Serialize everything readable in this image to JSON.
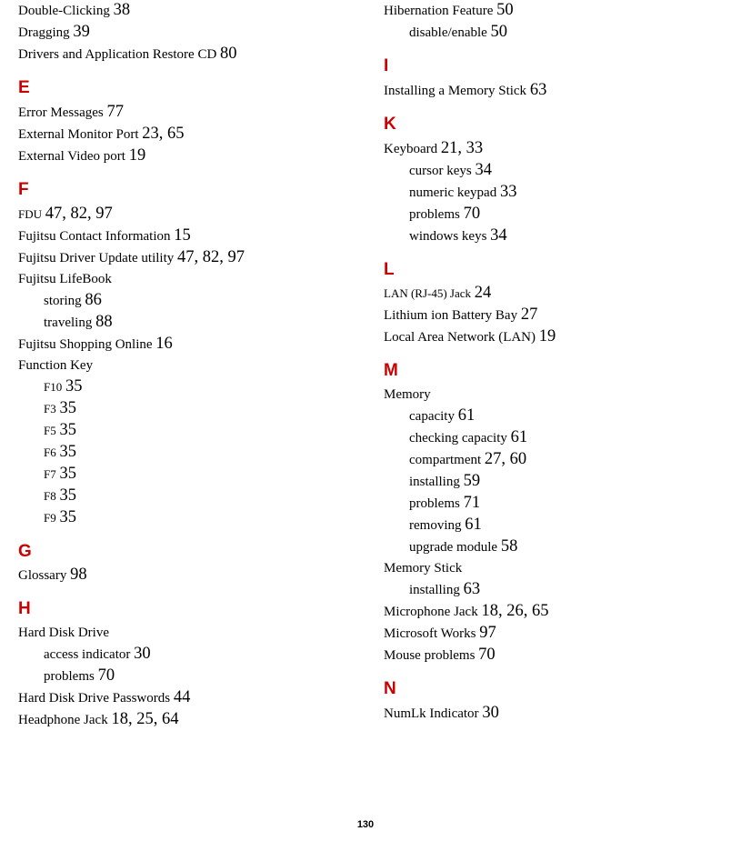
{
  "pageNumber": "130",
  "headingColor": "#cc0000",
  "textColor": "#000000",
  "backgroundColor": "#ffffff",
  "fonts": {
    "body": "Times New Roman",
    "heading": "Arial",
    "bodySize": 15,
    "bodySmallSize": 13,
    "pageNumSize": 18.5,
    "headingSize": 19
  },
  "leftColumn": [
    {
      "type": "entry",
      "label": "Double-Clicking",
      "pages": "38"
    },
    {
      "type": "entry",
      "label": "Dragging",
      "pages": "39"
    },
    {
      "type": "entry",
      "label": "Drivers and Application Restore CD",
      "pages": "80"
    },
    {
      "type": "heading",
      "letter": "E"
    },
    {
      "type": "entry",
      "label": "Error Messages",
      "pages": "77"
    },
    {
      "type": "entry",
      "label": "External Monitor Port",
      "pages": "23, 65"
    },
    {
      "type": "entry",
      "label": "External Video port",
      "pages": "19"
    },
    {
      "type": "heading",
      "letter": "F"
    },
    {
      "type": "entry",
      "label": "FDU",
      "small": true,
      "pages": "47, 82, 97"
    },
    {
      "type": "entry",
      "label": "Fujitsu Contact Information",
      "pages": "15"
    },
    {
      "type": "entry",
      "label": "Fujitsu Driver Update utility",
      "pages": "47, 82, 97"
    },
    {
      "type": "entry",
      "label": "Fujitsu LifeBook",
      "pages": ""
    },
    {
      "type": "sub",
      "label": "storing",
      "pages": "86"
    },
    {
      "type": "sub",
      "label": "traveling",
      "pages": "88"
    },
    {
      "type": "entry",
      "label": "Fujitsu Shopping Online",
      "pages": "16"
    },
    {
      "type": "entry",
      "label": "Function Key",
      "pages": ""
    },
    {
      "type": "sub",
      "label": "F10",
      "small": true,
      "pages": "35"
    },
    {
      "type": "sub",
      "label": "F3",
      "small": true,
      "pages": "35"
    },
    {
      "type": "sub",
      "label": "F5",
      "small": true,
      "pages": "35"
    },
    {
      "type": "sub",
      "label": "F6",
      "small": true,
      "pages": "35"
    },
    {
      "type": "sub",
      "label": "F7",
      "small": true,
      "pages": "35"
    },
    {
      "type": "sub",
      "label": "F8",
      "small": true,
      "pages": "35"
    },
    {
      "type": "sub",
      "label": "F9",
      "small": true,
      "pages": "35"
    },
    {
      "type": "heading",
      "letter": "G"
    },
    {
      "type": "entry",
      "label": "Glossary",
      "pages": "98"
    },
    {
      "type": "heading",
      "letter": "H"
    },
    {
      "type": "entry",
      "label": "Hard Disk Drive",
      "pages": ""
    },
    {
      "type": "sub",
      "label": "access indicator",
      "pages": "30"
    },
    {
      "type": "sub",
      "label": "problems",
      "pages": "70"
    },
    {
      "type": "entry",
      "label": "Hard Disk Drive Passwords",
      "pages": "44"
    },
    {
      "type": "entry",
      "label": "Headphone Jack",
      "pages": "18, 25, 64"
    }
  ],
  "rightColumn": [
    {
      "type": "entry",
      "label": "Hibernation Feature",
      "pages": "50"
    },
    {
      "type": "sub",
      "label": "disable/enable",
      "pages": "50"
    },
    {
      "type": "heading",
      "letter": "I"
    },
    {
      "type": "entry",
      "label": "Installing a Memory Stick",
      "pages": "63"
    },
    {
      "type": "heading",
      "letter": "K"
    },
    {
      "type": "entry",
      "label": "Keyboard",
      "pages": "21, 33"
    },
    {
      "type": "sub",
      "label": "cursor keys",
      "pages": "34"
    },
    {
      "type": "sub",
      "label": "numeric keypad",
      "pages": "33"
    },
    {
      "type": "sub",
      "label": "problems",
      "pages": "70"
    },
    {
      "type": "sub",
      "label": "windows keys",
      "pages": "34"
    },
    {
      "type": "heading",
      "letter": "L"
    },
    {
      "type": "entry",
      "label": "LAN (RJ-45) Jack",
      "small": true,
      "pages": "24"
    },
    {
      "type": "entry",
      "label": "Lithium ion Battery Bay",
      "pages": "27"
    },
    {
      "type": "entry",
      "label": "Local Area Network (LAN)",
      "pages": "19"
    },
    {
      "type": "heading",
      "letter": "M"
    },
    {
      "type": "entry",
      "label": "Memory",
      "pages": ""
    },
    {
      "type": "sub",
      "label": "capacity",
      "pages": "61"
    },
    {
      "type": "sub",
      "label": "checking capacity",
      "pages": "61"
    },
    {
      "type": "sub",
      "label": "compartment",
      "pages": "27, 60"
    },
    {
      "type": "sub",
      "label": "installing",
      "pages": "59"
    },
    {
      "type": "sub",
      "label": "problems",
      "pages": "71"
    },
    {
      "type": "sub",
      "label": "removing",
      "pages": "61"
    },
    {
      "type": "sub",
      "label": "upgrade module",
      "pages": "58"
    },
    {
      "type": "entry",
      "label": "Memory Stick",
      "pages": ""
    },
    {
      "type": "sub",
      "label": "installing",
      "pages": "63"
    },
    {
      "type": "entry",
      "label": "Microphone Jack",
      "pages": "18, 26, 65"
    },
    {
      "type": "entry",
      "label": "Microsoft Works",
      "pages": "97"
    },
    {
      "type": "entry",
      "label": "Mouse problems",
      "pages": "70"
    },
    {
      "type": "heading",
      "letter": "N"
    },
    {
      "type": "entry",
      "label": "NumLk Indicator",
      "pages": "30"
    }
  ]
}
